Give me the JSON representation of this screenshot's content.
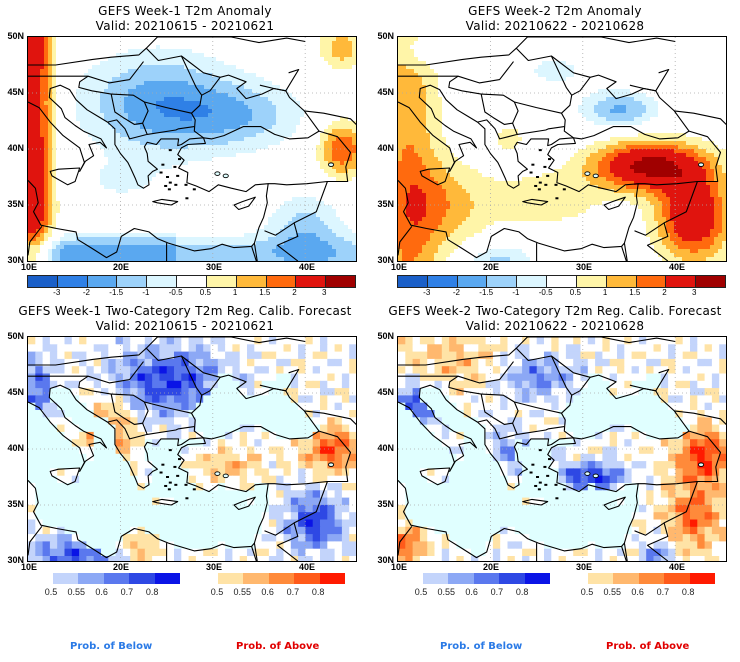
{
  "panels": [
    {
      "title": "GEFS Week-1 T2m Anomaly",
      "valid": "Valid: 20210615 - 20210621",
      "kind": "anomaly",
      "week": 1
    },
    {
      "title": "GEFS Week-2 T2m Anomaly",
      "valid": "Valid: 20210622 - 20210628",
      "kind": "anomaly",
      "week": 2
    },
    {
      "title": "GEFS Week-1 Two-Category T2m Reg. Calib. Forecast",
      "valid": "Valid: 20210615 - 20210621",
      "kind": "prob",
      "week": 1
    },
    {
      "title": "GEFS Week-2 Two-Category T2m Reg. Calib. Forecast",
      "valid": "Valid: 20210622 - 20210628",
      "kind": "prob",
      "week": 2
    }
  ],
  "axes": {
    "lat_labels": [
      "50N",
      "45N",
      "40N",
      "35N",
      "30N"
    ],
    "lon_labels": [
      "10E",
      "20E",
      "30E",
      "40E"
    ]
  },
  "anomaly_colorbar": {
    "labels": [
      "-3",
      "-2",
      "-1.5",
      "-1",
      "-0.5",
      "0.5",
      "1",
      "1.5",
      "2",
      "3"
    ],
    "colors": [
      "#1a5fc8",
      "#2f80e6",
      "#5aa8f0",
      "#9dd2fa",
      "#dcf6ff",
      "#ffffff",
      "#fff5a8",
      "#ffb93a",
      "#ff6a0e",
      "#e0140e",
      "#a00000"
    ]
  },
  "prob_below_colorbar": {
    "labels": [
      "0.5",
      "0.55",
      "0.6",
      "0.7",
      "0.8"
    ],
    "colors": [
      "#c3d4fb",
      "#8ca8f5",
      "#5a78ee",
      "#2e48e4",
      "#0a14e6"
    ]
  },
  "prob_above_colorbar": {
    "labels": [
      "0.5",
      "0.55",
      "0.6",
      "0.7",
      "0.8"
    ],
    "colors": [
      "#ffe3a6",
      "#ffb86e",
      "#ff8a3a",
      "#ff5a1a",
      "#ff1a00"
    ]
  },
  "footer": {
    "below_label": "Prob. of Below",
    "above_label": "Prob. of Above",
    "below_color": "#2a7ae6",
    "above_color": "#e00000"
  },
  "sea_color": "#e0ffff"
}
